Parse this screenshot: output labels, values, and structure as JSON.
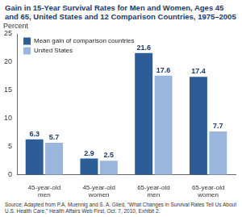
{
  "chart_data": {
    "type": "bar",
    "title": "Gain in 15-Year Survival Rates for Men and Women, Ages 45 and 65, United States and 12 Comparison Countries, 1975–2005",
    "ylabel": "Percent",
    "source": "Source: Adapted from P.A. Muennig and S. A. Glied, “What Changes in Survival Rates Tell Us About U.S. Health Care,” Health Affairs Web First, Oct. 7, 2010, Exhibit 2.",
    "categories": [
      "45-year-old men",
      "45-year-old women",
      "65-year-old men",
      "65-year-old women"
    ],
    "series": [
      {
        "name": "Mean gain of comparison countries",
        "color": "#2c5d97",
        "values": [
          6.3,
          2.9,
          21.6,
          17.4
        ]
      },
      {
        "name": "United States",
        "color": "#9ab6dc",
        "values": [
          5.7,
          2.5,
          17.6,
          7.7
        ]
      }
    ],
    "ylim": [
      0,
      25
    ],
    "yticks": [
      0,
      5,
      10,
      15,
      20,
      25
    ],
    "grid": false,
    "legend": "upper left",
    "data_labels": true
  }
}
